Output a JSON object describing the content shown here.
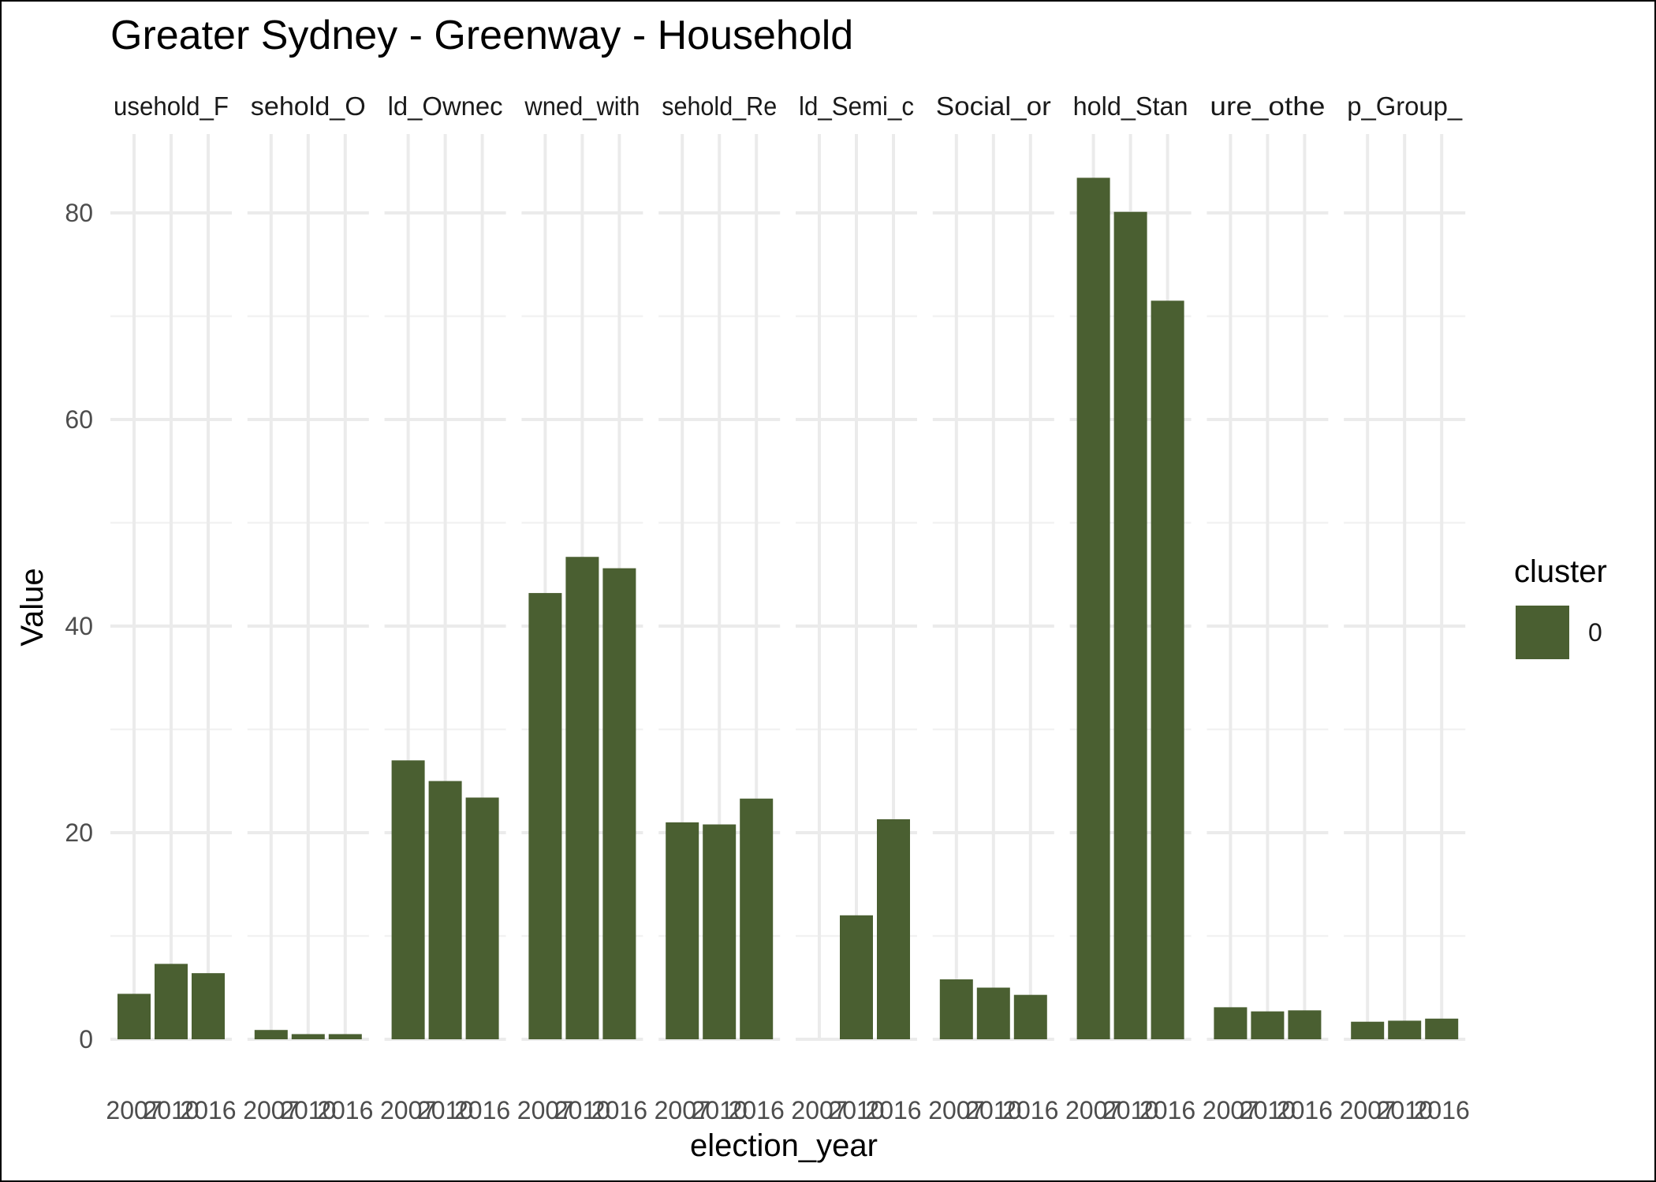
{
  "chart_data": {
    "type": "bar",
    "title": "Greater Sydney - Greenway - Household",
    "xlabel": "election_year",
    "ylabel": "Value",
    "ylim": [
      0,
      87.5
    ],
    "y_ticks": [
      0,
      20,
      40,
      60,
      80
    ],
    "grid": true,
    "legend": {
      "title": "cluster",
      "placement": "right",
      "entries": [
        {
          "label": "0",
          "color": "#4a5f31"
        }
      ]
    },
    "bar_color": "#4a5f31",
    "x_categories": [
      "2007",
      "2010",
      "2016"
    ],
    "facets": [
      {
        "strip": "usehold_F",
        "values": [
          4.4,
          7.3,
          6.4
        ]
      },
      {
        "strip": "sehold_O",
        "values": [
          0.9,
          0.5,
          0.5
        ]
      },
      {
        "strip": "ld_Ownec",
        "values": [
          27.0,
          25.0,
          23.4
        ]
      },
      {
        "strip": "wned_with",
        "values": [
          43.2,
          46.7,
          45.6
        ]
      },
      {
        "strip": "sehold_Re",
        "values": [
          21.0,
          20.8,
          23.3
        ]
      },
      {
        "strip": "ld_Semi_c",
        "values": [
          null,
          12.0,
          21.3
        ]
      },
      {
        "strip": "Social_or",
        "values": [
          5.8,
          5.0,
          4.3
        ]
      },
      {
        "strip": "hold_Stan",
        "values": [
          83.4,
          80.1,
          71.5
        ]
      },
      {
        "strip": "ure_othe",
        "values": [
          3.1,
          2.7,
          2.8
        ]
      },
      {
        "strip": "p_Group_",
        "values": [
          1.7,
          1.8,
          2.0
        ]
      }
    ]
  }
}
